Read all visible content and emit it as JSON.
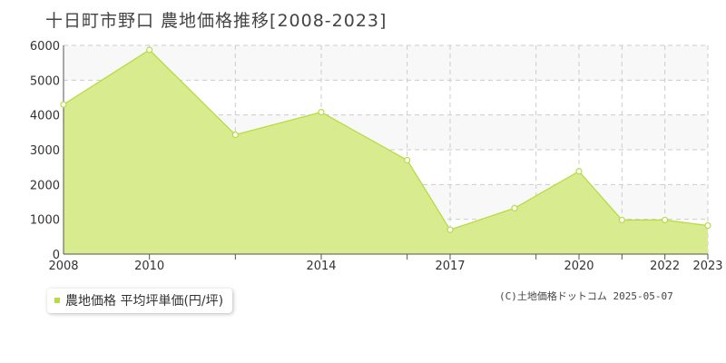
{
  "title": "十日町市野口 農地価格推移[2008-2023]",
  "legend": {
    "label": "農地価格 平均坪単価(円/坪)"
  },
  "copyright": "(C)土地価格ドットコム 2025-05-07",
  "colors": {
    "fill": "#d8ec8f",
    "line": "#b7dc45",
    "grid": "#cccccc",
    "axis": "#555555",
    "band": "#f8f8f8"
  },
  "chart_data": {
    "type": "area",
    "x": [
      2008,
      2010,
      2012,
      2014,
      2016,
      2017,
      2018.5,
      2020,
      2021,
      2022,
      2023
    ],
    "series": [
      {
        "name": "農地価格 平均坪単価(円/坪)",
        "values": [
          4300,
          5870,
          3430,
          4080,
          2700,
          700,
          1320,
          2380,
          980,
          980,
          820
        ]
      }
    ],
    "xticks": [
      2008,
      2010,
      2014,
      2017,
      2020,
      2022,
      2023
    ],
    "xgrid": [
      2010,
      2012,
      2014,
      2016,
      2017,
      2019,
      2020,
      2021,
      2022,
      2023
    ],
    "yticks": [
      0,
      1000,
      2000,
      3000,
      4000,
      5000,
      6000
    ],
    "xlim": [
      2008,
      2023
    ],
    "ylim": [
      0,
      6000
    ],
    "grid": true
  }
}
